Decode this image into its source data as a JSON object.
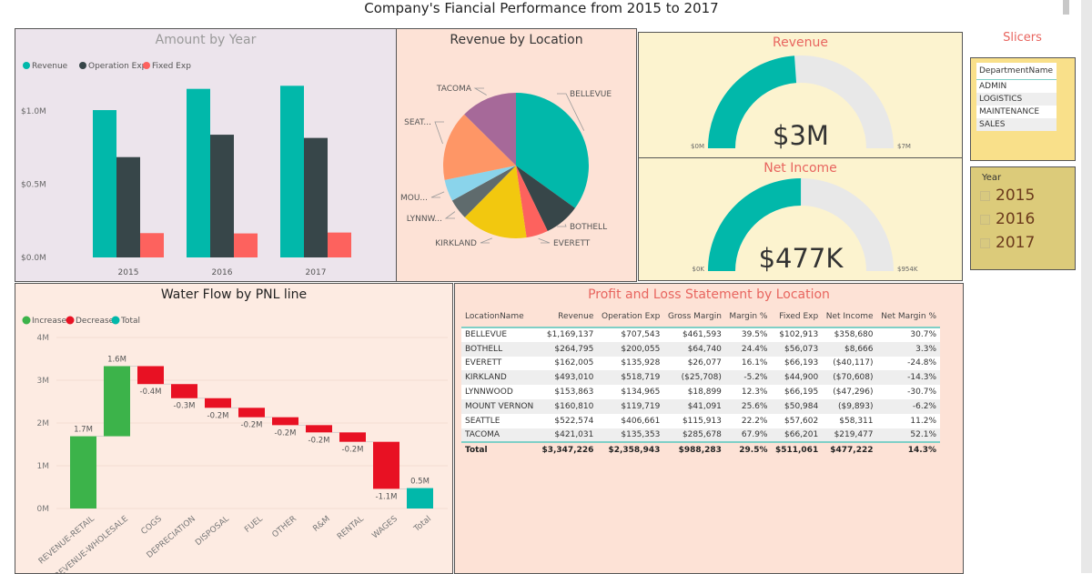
{
  "title": "Company's Fiancial Performance from 2015 to 2017",
  "colors": {
    "revenue": "#01B8AA",
    "operation_exp": "#374649",
    "fixed_exp": "#FD625E",
    "increase": "#3cb34a",
    "decrease": "#e81123",
    "total": "#01B8AA",
    "gauge_fill": "#01B8AA",
    "gauge_track": "#e8e8e8",
    "gauge_title": "#e8655f"
  },
  "chart_data": [
    {
      "type": "bar",
      "title": "Amount by Year",
      "categories": [
        "2015",
        "2016",
        "2017"
      ],
      "series": [
        {
          "name": "Revenue",
          "values": [
            1006000,
            1151000,
            1172000
          ]
        },
        {
          "name": "Operation Exp",
          "values": [
            685000,
            838000,
            816000
          ]
        },
        {
          "name": "Fixed Exp",
          "values": [
            166000,
            164000,
            170000
          ]
        }
      ],
      "yticks": [
        "$0.0M",
        "$0.5M",
        "$1.0M"
      ],
      "ylim": [
        0,
        1300000
      ],
      "legend": "top-left",
      "grid": false
    },
    {
      "type": "pie",
      "title": "Revenue by Location",
      "labels": [
        "BELLEVUE",
        "BOTHELL",
        "EVERETT",
        "KIRKLAND",
        "LYNNW...",
        "MOU...",
        "SEAT...",
        "TACOMA"
      ],
      "values": [
        1169137,
        264795,
        162005,
        493010,
        153863,
        160810,
        522574,
        421031
      ],
      "colors": [
        "#01B8AA",
        "#374649",
        "#FD625E",
        "#F2C80F",
        "#5F6B6D",
        "#8AD4EB",
        "#FE9666",
        "#A66999"
      ]
    },
    {
      "type": "gauge",
      "title": "Revenue",
      "value_label": "$3M",
      "min_label": "$0M",
      "max_label": "$7M",
      "value": 3347226,
      "max": 7000000
    },
    {
      "type": "gauge",
      "title": "Net Income",
      "value_label": "$477K",
      "min_label": "$0K",
      "max_label": "$954K",
      "value": 477222,
      "max": 954000
    },
    {
      "type": "waterfall",
      "title": "Water Flow by PNL line",
      "legend": [
        "Increase",
        "Decrease",
        "Total"
      ],
      "categories": [
        "REVENUE-RETAIL",
        "REVENUE-WHOLESALE",
        "COGS",
        "DEPRECIATION",
        "DISPOSAL",
        "FUEL",
        "OTHER",
        "R&M",
        "RENTAL",
        "WAGES",
        "Total"
      ],
      "values": [
        1690000,
        1640000,
        -420000,
        -330000,
        -225000,
        -220000,
        -185000,
        -170000,
        -220000,
        -1100000,
        477222
      ],
      "data_labels": [
        "1.7M",
        "1.6M",
        "-0.4M",
        "-0.3M",
        "-0.2M",
        "-0.2M",
        "-0.2M",
        "-0.2M",
        "-0.2M",
        "-1.1M",
        "0.5M"
      ],
      "yticks": [
        "0M",
        "1M",
        "2M",
        "3M",
        "4M"
      ],
      "ylim": [
        0,
        4000000
      ],
      "grid": true
    },
    {
      "type": "table",
      "title": "Profit and Loss Statement by Location",
      "columns": [
        "LocationName",
        "Revenue",
        "Operation Exp",
        "Gross Margin",
        "Margin %",
        "Fixed Exp",
        "Net Income",
        "Net Margin %"
      ],
      "rows": [
        [
          "BELLEVUE",
          "$1,169,137",
          "$707,543",
          "$461,593",
          "39.5%",
          "$102,913",
          "$358,680",
          "30.7%"
        ],
        [
          "BOTHELL",
          "$264,795",
          "$200,055",
          "$64,740",
          "24.4%",
          "$56,073",
          "$8,666",
          "3.3%"
        ],
        [
          "EVERETT",
          "$162,005",
          "$135,928",
          "$26,077",
          "16.1%",
          "$66,193",
          "($40,117)",
          "-24.8%"
        ],
        [
          "KIRKLAND",
          "$493,010",
          "$518,719",
          "($25,708)",
          "-5.2%",
          "$44,900",
          "($70,608)",
          "-14.3%"
        ],
        [
          "LYNNWOOD",
          "$153,863",
          "$134,965",
          "$18,899",
          "12.3%",
          "$66,195",
          "($47,296)",
          "-30.7%"
        ],
        [
          "MOUNT VERNON",
          "$160,810",
          "$119,719",
          "$41,091",
          "25.6%",
          "$50,984",
          "($9,893)",
          "-6.2%"
        ],
        [
          "SEATTLE",
          "$522,574",
          "$406,661",
          "$115,913",
          "22.2%",
          "$57,602",
          "$58,311",
          "11.2%"
        ],
        [
          "TACOMA",
          "$421,031",
          "$135,353",
          "$285,678",
          "67.9%",
          "$66,201",
          "$219,477",
          "52.1%"
        ]
      ],
      "total": [
        "Total",
        "$3,347,226",
        "$2,358,943",
        "$988,283",
        "29.5%",
        "$511,061",
        "$477,222",
        "14.3%"
      ]
    }
  ],
  "slicers": {
    "label": "Slicers",
    "department": {
      "header": "DepartmentName",
      "items": [
        "ADMIN",
        "LOGISTICS",
        "MAINTENANCE",
        "SALES"
      ]
    },
    "year": {
      "header": "Year",
      "items": [
        "2015",
        "2016",
        "2017"
      ]
    }
  }
}
